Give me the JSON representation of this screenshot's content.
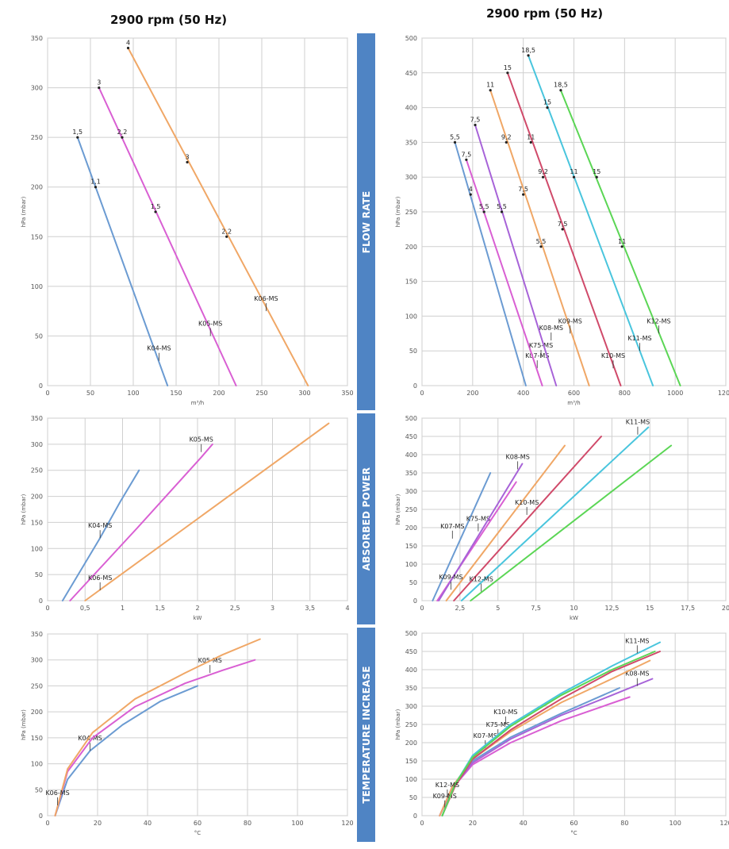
{
  "headers": {
    "left": "2900 rpm (50 Hz)",
    "right": "2900 rpm (50 Hz)"
  },
  "bands": [
    {
      "label": "FLOW RATE"
    },
    {
      "label": "ABSORBED POWER"
    },
    {
      "label": "TEMPERATURE INCREASE"
    }
  ],
  "colors": {
    "K04-MS": "#6b9bd2",
    "K05-MS": "#d95fd3",
    "K06-MS": "#f0a766",
    "K07-MS": "#6b9bd2",
    "K75-MS": "#d95fd3",
    "K08-MS": "#a763d8",
    "K09-MS": "#f0a766",
    "K10-MS": "#d04a6a",
    "K11-MS": "#49c5dd",
    "K12-MS": "#5bd655"
  },
  "chart_data": [
    {
      "id": "left-flow",
      "type": "line",
      "ylabel": "hPa (mbar)",
      "xlabel": "m³/h",
      "xlim": [
        0,
        350
      ],
      "ylim": [
        0,
        350
      ],
      "xticks": [
        0,
        50,
        100,
        150,
        200,
        250,
        300,
        350
      ],
      "xtick_labels": [
        "0",
        "50",
        "100",
        "150",
        "200",
        "250",
        "300",
        "350"
      ],
      "yticks": [
        0,
        50,
        100,
        150,
        200,
        250,
        300,
        350
      ],
      "ytick_labels": [
        "0",
        "50",
        "100",
        "150",
        "200",
        "250",
        "300",
        "350"
      ],
      "series": [
        {
          "name": "K04-MS",
          "x": [
            35,
            140
          ],
          "y": [
            250,
            0
          ],
          "points": [
            {
              "x": 35,
              "y": 250,
              "label": "1,5"
            },
            {
              "x": 56,
              "y": 200,
              "label": "1,1"
            }
          ],
          "label_at": {
            "x": 130,
            "y": 25,
            "text": "K04-MS"
          }
        },
        {
          "name": "K05-MS",
          "x": [
            60,
            220
          ],
          "y": [
            300,
            0
          ],
          "points": [
            {
              "x": 60,
              "y": 300,
              "label": "3"
            },
            {
              "x": 87,
              "y": 250,
              "label": "2,2"
            },
            {
              "x": 126,
              "y": 175,
              "label": "1,5"
            }
          ],
          "label_at": {
            "x": 190,
            "y": 50,
            "text": "K05-MS"
          }
        },
        {
          "name": "K06-MS",
          "x": [
            94,
            304
          ],
          "y": [
            340,
            0
          ],
          "points": [
            {
              "x": 94,
              "y": 340,
              "label": "4"
            },
            {
              "x": 163,
              "y": 225,
              "label": "3"
            },
            {
              "x": 209,
              "y": 150,
              "label": "2,2"
            }
          ],
          "label_at": {
            "x": 255,
            "y": 75,
            "text": "K06-MS"
          }
        }
      ]
    },
    {
      "id": "right-flow",
      "type": "line",
      "ylabel": "hPa (mbar)",
      "xlabel": "m³/h",
      "xlim": [
        0,
        1200
      ],
      "ylim": [
        0,
        500
      ],
      "xticks": [
        0,
        200,
        400,
        600,
        800,
        1000,
        1200
      ],
      "xtick_labels": [
        "0",
        "200",
        "400",
        "600",
        "800",
        "1000",
        "1200"
      ],
      "yticks": [
        0,
        50,
        100,
        150,
        200,
        250,
        300,
        350,
        400,
        450,
        500
      ],
      "ytick_labels": [
        "0",
        "50",
        "100",
        "150",
        "200",
        "250",
        "300",
        "350",
        "400",
        "450",
        "500"
      ],
      "series": [
        {
          "name": "K07-MS",
          "x": [
            130,
            410
          ],
          "y": [
            350,
            0
          ],
          "points": [
            {
              "x": 130,
              "y": 350,
              "label": "5,5"
            },
            {
              "x": 192,
              "y": 275,
              "label": "4"
            }
          ],
          "label_at": {
            "x": 455,
            "y": 25,
            "text": "K07-MS"
          }
        },
        {
          "name": "K75-MS",
          "x": [
            175,
            475
          ],
          "y": [
            325,
            0
          ],
          "points": [
            {
              "x": 175,
              "y": 325,
              "label": "7,5"
            },
            {
              "x": 245,
              "y": 250,
              "label": "5,5"
            }
          ],
          "label_at": {
            "x": 470,
            "y": 40,
            "text": "K75-MS"
          }
        },
        {
          "name": "K08-MS",
          "x": [
            210,
            530
          ],
          "y": [
            375,
            0
          ],
          "points": [
            {
              "x": 210,
              "y": 375,
              "label": "7,5"
            },
            {
              "x": 315,
              "y": 250,
              "label": "5,5"
            }
          ],
          "label_at": {
            "x": 510,
            "y": 65,
            "text": "K08-MS"
          }
        },
        {
          "name": "K09-MS",
          "x": [
            270,
            660
          ],
          "y": [
            425,
            0
          ],
          "points": [
            {
              "x": 270,
              "y": 425,
              "label": "11"
            },
            {
              "x": 333,
              "y": 350,
              "label": "9,2"
            },
            {
              "x": 400,
              "y": 275,
              "label": "7,5"
            },
            {
              "x": 470,
              "y": 200,
              "label": "5,5"
            }
          ],
          "label_at": {
            "x": 585,
            "y": 75,
            "text": "K09-MS"
          }
        },
        {
          "name": "K10-MS",
          "x": [
            338,
            785
          ],
          "y": [
            450,
            0
          ],
          "points": [
            {
              "x": 338,
              "y": 450,
              "label": "15"
            },
            {
              "x": 430,
              "y": 350,
              "label": "11"
            },
            {
              "x": 478,
              "y": 300,
              "label": "9,2"
            },
            {
              "x": 555,
              "y": 225,
              "label": "7,5"
            }
          ],
          "label_at": {
            "x": 755,
            "y": 25,
            "text": "K10-MS"
          }
        },
        {
          "name": "K11-MS",
          "x": [
            420,
            912
          ],
          "y": [
            475,
            0
          ],
          "points": [
            {
              "x": 420,
              "y": 475,
              "label": "18,5"
            },
            {
              "x": 495,
              "y": 400,
              "label": "15"
            },
            {
              "x": 600,
              "y": 300,
              "label": "11"
            }
          ],
          "label_at": {
            "x": 860,
            "y": 50,
            "text": "K11-MS"
          }
        },
        {
          "name": "K12-MS",
          "x": [
            548,
            1020
          ],
          "y": [
            425,
            0
          ],
          "points": [
            {
              "x": 548,
              "y": 425,
              "label": "18,5"
            },
            {
              "x": 690,
              "y": 300,
              "label": "15"
            },
            {
              "x": 790,
              "y": 200,
              "label": "11"
            }
          ],
          "label_at": {
            "x": 935,
            "y": 75,
            "text": "K12-MS"
          }
        }
      ]
    },
    {
      "id": "left-power",
      "type": "line",
      "ylabel": "hPa (mbar)",
      "xlabel": "kW",
      "xlim": [
        0,
        4
      ],
      "ylim": [
        0,
        350
      ],
      "xticks": [
        0,
        0.5,
        1,
        1.5,
        2,
        2.5,
        3,
        3.5,
        4
      ],
      "xtick_labels": [
        "0",
        "0,5",
        "1",
        "1,5",
        "2",
        "2,5",
        "3",
        "3,5",
        "4"
      ],
      "yticks": [
        0,
        50,
        100,
        150,
        200,
        250,
        300,
        350
      ],
      "ytick_labels": [
        "0",
        "50",
        "100",
        "150",
        "200",
        "250",
        "300",
        "350"
      ],
      "series": [
        {
          "name": "K04-MS",
          "x": [
            0.2,
            0.7,
            0.97,
            1.22
          ],
          "y": [
            0,
            120,
            190,
            250
          ],
          "label_at": {
            "x": 0.7,
            "y": 120,
            "text": "K04-MS"
          }
        },
        {
          "name": "K05-MS",
          "x": [
            0.3,
            1.2,
            2.05,
            2.2
          ],
          "y": [
            0,
            140,
            275,
            300
          ],
          "label_at": {
            "x": 2.05,
            "y": 285,
            "text": "K05-MS"
          }
        },
        {
          "name": "K06-MS",
          "x": [
            0.5,
            3.75
          ],
          "y": [
            0,
            340
          ],
          "label_at": {
            "x": 0.7,
            "y": 20,
            "text": "K06-MS"
          }
        }
      ]
    },
    {
      "id": "right-power",
      "type": "line",
      "ylabel": "hPa (mbar)",
      "xlabel": "kW",
      "xlim": [
        0,
        20
      ],
      "ylim": [
        0,
        500
      ],
      "xticks": [
        0,
        2.5,
        5,
        7.5,
        10,
        12.5,
        15,
        17.5,
        20
      ],
      "xtick_labels": [
        "0",
        "2,5",
        "5",
        "7,5",
        "10",
        "12,5",
        "15",
        "17,5",
        "20"
      ],
      "yticks": [
        0,
        50,
        100,
        150,
        200,
        250,
        300,
        350,
        400,
        450,
        500
      ],
      "ytick_labels": [
        "0",
        "50",
        "100",
        "150",
        "200",
        "250",
        "300",
        "350",
        "400",
        "450",
        "500"
      ],
      "series": [
        {
          "name": "K07-MS",
          "x": [
            0.7,
            4.5
          ],
          "y": [
            0,
            350
          ],
          "label_at": {
            "x": 2.0,
            "y": 170,
            "text": "K07-MS"
          }
        },
        {
          "name": "K75-MS",
          "x": [
            1.0,
            6.2
          ],
          "y": [
            0,
            325
          ],
          "label_at": {
            "x": 3.7,
            "y": 190,
            "text": "K75-MS"
          }
        },
        {
          "name": "K08-MS",
          "x": [
            1.1,
            6.6
          ],
          "y": [
            0,
            375
          ],
          "label_at": {
            "x": 6.3,
            "y": 360,
            "text": "K08-MS"
          }
        },
        {
          "name": "K09-MS",
          "x": [
            1.6,
            9.4
          ],
          "y": [
            0,
            425
          ],
          "label_at": {
            "x": 1.9,
            "y": 30,
            "text": "K09-MS"
          }
        },
        {
          "name": "K10-MS",
          "x": [
            2.1,
            11.8
          ],
          "y": [
            0,
            450
          ],
          "label_at": {
            "x": 6.9,
            "y": 235,
            "text": "K10-MS"
          }
        },
        {
          "name": "K11-MS",
          "x": [
            2.6,
            14.9
          ],
          "y": [
            0,
            475
          ],
          "label_at": {
            "x": 14.2,
            "y": 455,
            "text": "K11-MS"
          }
        },
        {
          "name": "K12-MS",
          "x": [
            3.2,
            16.4
          ],
          "y": [
            0,
            425
          ],
          "label_at": {
            "x": 3.9,
            "y": 25,
            "text": "K12-MS"
          }
        }
      ]
    },
    {
      "id": "left-temp",
      "type": "line",
      "ylabel": "hPa (mbar)",
      "xlabel": "°C",
      "xlim": [
        0,
        120
      ],
      "ylim": [
        0,
        350
      ],
      "xticks": [
        0,
        20,
        40,
        60,
        80,
        100,
        120
      ],
      "xtick_labels": [
        "0",
        "20",
        "40",
        "60",
        "80",
        "100",
        "120"
      ],
      "yticks": [
        0,
        50,
        100,
        150,
        200,
        250,
        300,
        350
      ],
      "ytick_labels": [
        "0",
        "50",
        "100",
        "150",
        "200",
        "250",
        "300",
        "350"
      ],
      "series": [
        {
          "name": "K04-MS",
          "x": [
            3,
            8,
            17,
            30,
            45,
            60
          ],
          "y": [
            0,
            70,
            125,
            175,
            220,
            250
          ],
          "label_at": {
            "x": 17,
            "y": 125,
            "text": "K04-MS"
          }
        },
        {
          "name": "K05-MS",
          "x": [
            3,
            8,
            18,
            35,
            55,
            70,
            83
          ],
          "y": [
            0,
            85,
            150,
            210,
            255,
            280,
            300
          ],
          "label_at": {
            "x": 65,
            "y": 275,
            "text": "K05-MS"
          }
        },
        {
          "name": "K06-MS",
          "x": [
            3,
            8,
            18,
            35,
            55,
            70,
            85
          ],
          "y": [
            0,
            90,
            160,
            225,
            275,
            310,
            340
          ],
          "label_at": {
            "x": 4,
            "y": 20,
            "text": "K06-MS"
          }
        }
      ]
    },
    {
      "id": "right-temp",
      "type": "line",
      "ylabel": "hPa (mbar)",
      "xlabel": "°C",
      "xlim": [
        0,
        120
      ],
      "ylim": [
        0,
        500
      ],
      "xticks": [
        0,
        20,
        40,
        60,
        80,
        100,
        120
      ],
      "xtick_labels": [
        "0",
        "20",
        "40",
        "60",
        "80",
        "100",
        "120"
      ],
      "yticks": [
        0,
        50,
        100,
        150,
        200,
        250,
        300,
        350,
        400,
        450,
        500
      ],
      "ytick_labels": [
        "0",
        "50",
        "100",
        "150",
        "200",
        "250",
        "300",
        "350",
        "400",
        "450",
        "500"
      ],
      "series": [
        {
          "name": "K07-MS",
          "x": [
            7,
            12,
            20,
            35,
            55,
            78
          ],
          "y": [
            0,
            80,
            150,
            215,
            280,
            350
          ],
          "label_at": {
            "x": 25,
            "y": 185,
            "text": "K07-MS"
          }
        },
        {
          "name": "K75-MS",
          "x": [
            7,
            12,
            20,
            35,
            55,
            82
          ],
          "y": [
            0,
            75,
            140,
            200,
            260,
            325
          ],
          "label_at": {
            "x": 30,
            "y": 215,
            "text": "K75-MS"
          }
        },
        {
          "name": "K08-MS",
          "x": [
            7,
            12,
            20,
            35,
            55,
            75,
            91
          ],
          "y": [
            0,
            75,
            145,
            210,
            275,
            330,
            375
          ],
          "label_at": {
            "x": 85,
            "y": 355,
            "text": "K08-MS"
          }
        },
        {
          "name": "K09-MS",
          "x": [
            7,
            12,
            20,
            35,
            55,
            75,
            90
          ],
          "y": [
            0,
            80,
            155,
            230,
            310,
            375,
            425
          ],
          "label_at": {
            "x": 9,
            "y": 20,
            "text": "K09-MS"
          }
        },
        {
          "name": "K10-MS",
          "x": [
            8,
            13,
            20,
            35,
            55,
            75,
            94
          ],
          "y": [
            0,
            80,
            155,
            235,
            320,
            395,
            450
          ],
          "label_at": {
            "x": 33,
            "y": 250,
            "text": "K10-MS"
          }
        },
        {
          "name": "K11-MS",
          "x": [
            8,
            13,
            20,
            35,
            55,
            75,
            94
          ],
          "y": [
            0,
            85,
            165,
            250,
            335,
            410,
            475
          ],
          "label_at": {
            "x": 85,
            "y": 445,
            "text": "K11-MS"
          }
        },
        {
          "name": "K12-MS",
          "x": [
            8,
            13,
            20,
            35,
            55,
            75,
            92
          ],
          "y": [
            0,
            85,
            160,
            245,
            330,
            400,
            450
          ],
          "label_at": {
            "x": 10,
            "y": 50,
            "text": "K12-MS"
          }
        }
      ]
    }
  ]
}
